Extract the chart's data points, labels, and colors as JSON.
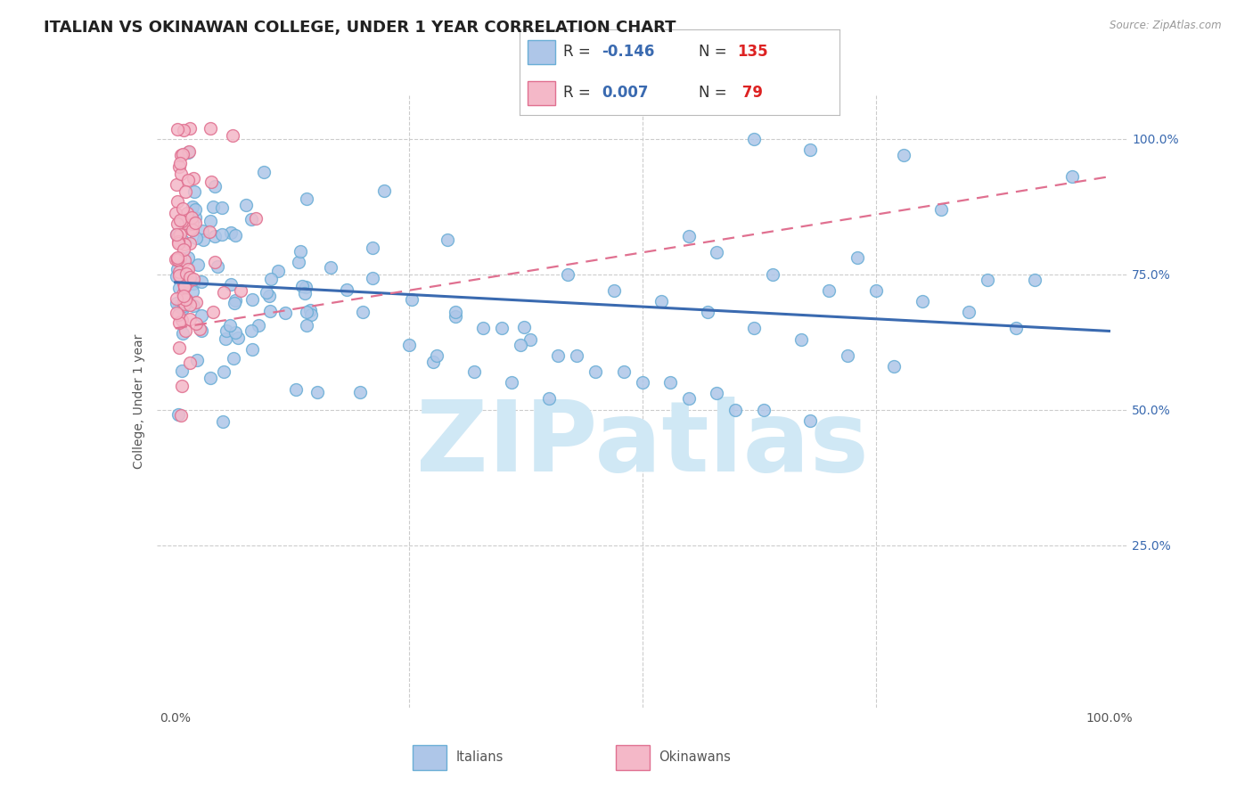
{
  "title": "ITALIAN VS OKINAWAN COLLEGE, UNDER 1 YEAR CORRELATION CHART",
  "source_text": "Source: ZipAtlas.com",
  "ylabel": "College, Under 1 year",
  "xlim": [
    -0.02,
    1.02
  ],
  "ylim": [
    -0.05,
    1.08
  ],
  "blue_color": "#aec6e8",
  "blue_edge": "#6aaed6",
  "pink_color": "#f4b8c8",
  "pink_edge": "#e07090",
  "blue_line_color": "#3a6ab0",
  "pink_line_color": "#e07090",
  "title_color": "#222222",
  "r_color": "#3a6ab0",
  "n_color": "#dd2222",
  "watermark_color": "#d0e8f5",
  "watermark_text": "ZIPatlas",
  "background_color": "#ffffff",
  "grid_color": "#cccccc",
  "title_fontsize": 13,
  "axis_label_fontsize": 10,
  "tick_fontsize": 10,
  "seed": 99
}
